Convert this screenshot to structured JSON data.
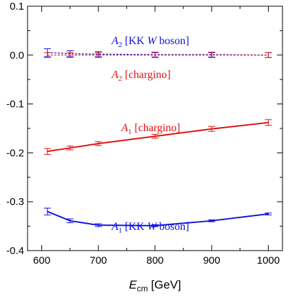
{
  "chart_data": {
    "type": "line",
    "xlabel": {
      "main": "E",
      "sub": "cm",
      "rest": " [GeV]"
    },
    "ylabel": "",
    "xlim": [
      575,
      1025
    ],
    "ylim": [
      -0.4,
      0.1
    ],
    "xticks": [
      600,
      700,
      800,
      900,
      1000
    ],
    "yticks": [
      -0.4,
      -0.3,
      -0.2,
      -0.1,
      0.0,
      0.1
    ],
    "xtick_labels": [
      "600",
      "700",
      "800",
      "900",
      "1000"
    ],
    "ytick_labels": [
      "-0.4",
      "-0.3",
      "-0.2",
      "-0.1",
      "0.0",
      "0.1"
    ],
    "grid": false,
    "x": [
      610,
      650,
      700,
      800,
      900,
      1000
    ],
    "series": [
      {
        "label_parts": [
          "A",
          "2",
          " [KK ",
          "W",
          " boson]"
        ],
        "color": "#1010e0",
        "style": "dashed",
        "values": [
          0.005,
          0.003,
          0.002,
          0.001,
          0.001,
          0.0
        ],
        "errors": [
          0.008,
          0.006,
          0.005,
          0.005,
          0.005,
          0.005
        ]
      },
      {
        "label_parts": [
          "A",
          "2",
          " [chargino]"
        ],
        "color": "#e01010",
        "style": "dashed",
        "values": [
          0.0,
          0.0,
          0.0,
          0.0,
          0.0,
          0.0
        ],
        "errors": [
          0.005,
          0.005,
          0.005,
          0.005,
          0.005,
          0.005
        ]
      },
      {
        "label_parts": [
          "A",
          "1",
          " [chargino]"
        ],
        "color": "#e01010",
        "style": "solid",
        "values": [
          -0.197,
          -0.19,
          -0.181,
          -0.166,
          -0.151,
          -0.138
        ],
        "errors": [
          0.006,
          0.004,
          0.004,
          0.004,
          0.005,
          0.006
        ]
      },
      {
        "label_parts": [
          "A",
          "1",
          " [KK ",
          "W",
          " boson]"
        ],
        "color": "#1010e0",
        "style": "solid",
        "values": [
          -0.32,
          -0.339,
          -0.348,
          -0.349,
          -0.339,
          -0.325
        ],
        "errors": [
          0.007,
          0.004,
          0.003,
          0.002,
          0.002,
          0.002
        ]
      }
    ]
  }
}
